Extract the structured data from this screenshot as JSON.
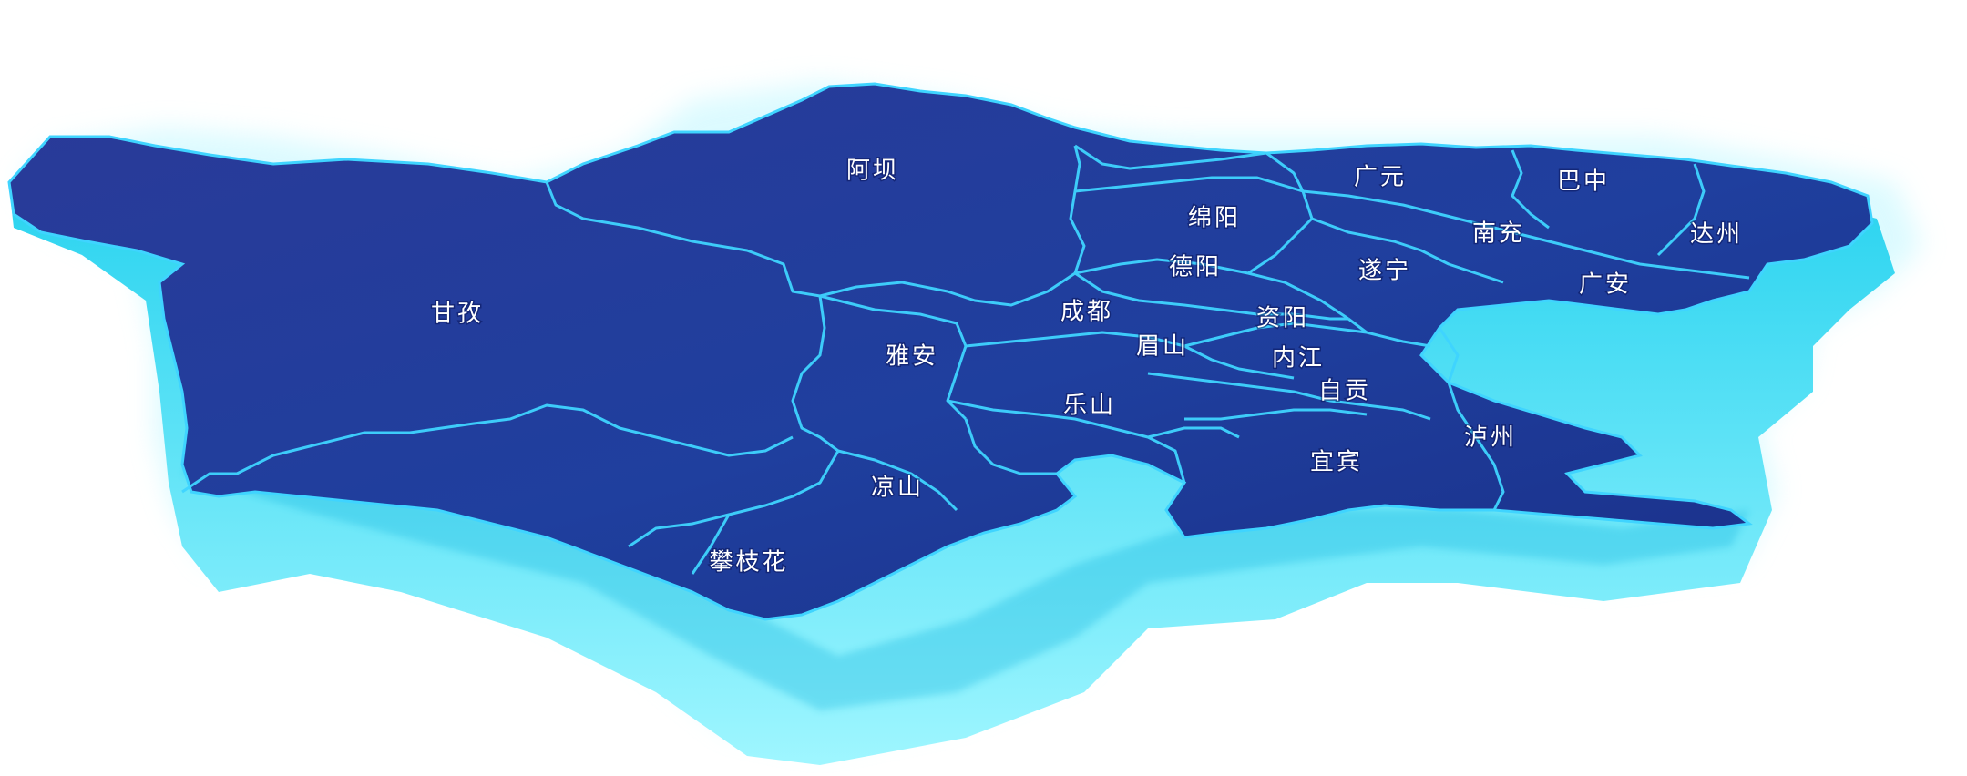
{
  "map": {
    "colors": {
      "land_top": "#1f3f9e",
      "land_top_dark": "#1a2f88",
      "border_line": "#3fd4ff",
      "shadow_side": "#22d6f0",
      "shadow_glow": "#8ff3ff"
    },
    "regions": [
      {
        "id": "ganzi",
        "label": "甘孜"
      },
      {
        "id": "aba",
        "label": "阿坝"
      },
      {
        "id": "guangyuan",
        "label": "广元"
      },
      {
        "id": "bazhong",
        "label": "巴中"
      },
      {
        "id": "mianyang",
        "label": "绵阳"
      },
      {
        "id": "nanchong",
        "label": "南充"
      },
      {
        "id": "dazhou",
        "label": "达州"
      },
      {
        "id": "deyang",
        "label": "德阳"
      },
      {
        "id": "suining",
        "label": "遂宁"
      },
      {
        "id": "guangan",
        "label": "广安"
      },
      {
        "id": "chengdu",
        "label": "成都"
      },
      {
        "id": "ziyang",
        "label": "资阳"
      },
      {
        "id": "yaan",
        "label": "雅安"
      },
      {
        "id": "meishan",
        "label": "眉山"
      },
      {
        "id": "neijiang",
        "label": "内江"
      },
      {
        "id": "zigong",
        "label": "自贡"
      },
      {
        "id": "leshan",
        "label": "乐山"
      },
      {
        "id": "luzhou",
        "label": "泸州"
      },
      {
        "id": "yibin",
        "label": "宜宾"
      },
      {
        "id": "liangshan",
        "label": "凉山"
      },
      {
        "id": "panzhihua",
        "label": "攀枝花"
      }
    ]
  }
}
